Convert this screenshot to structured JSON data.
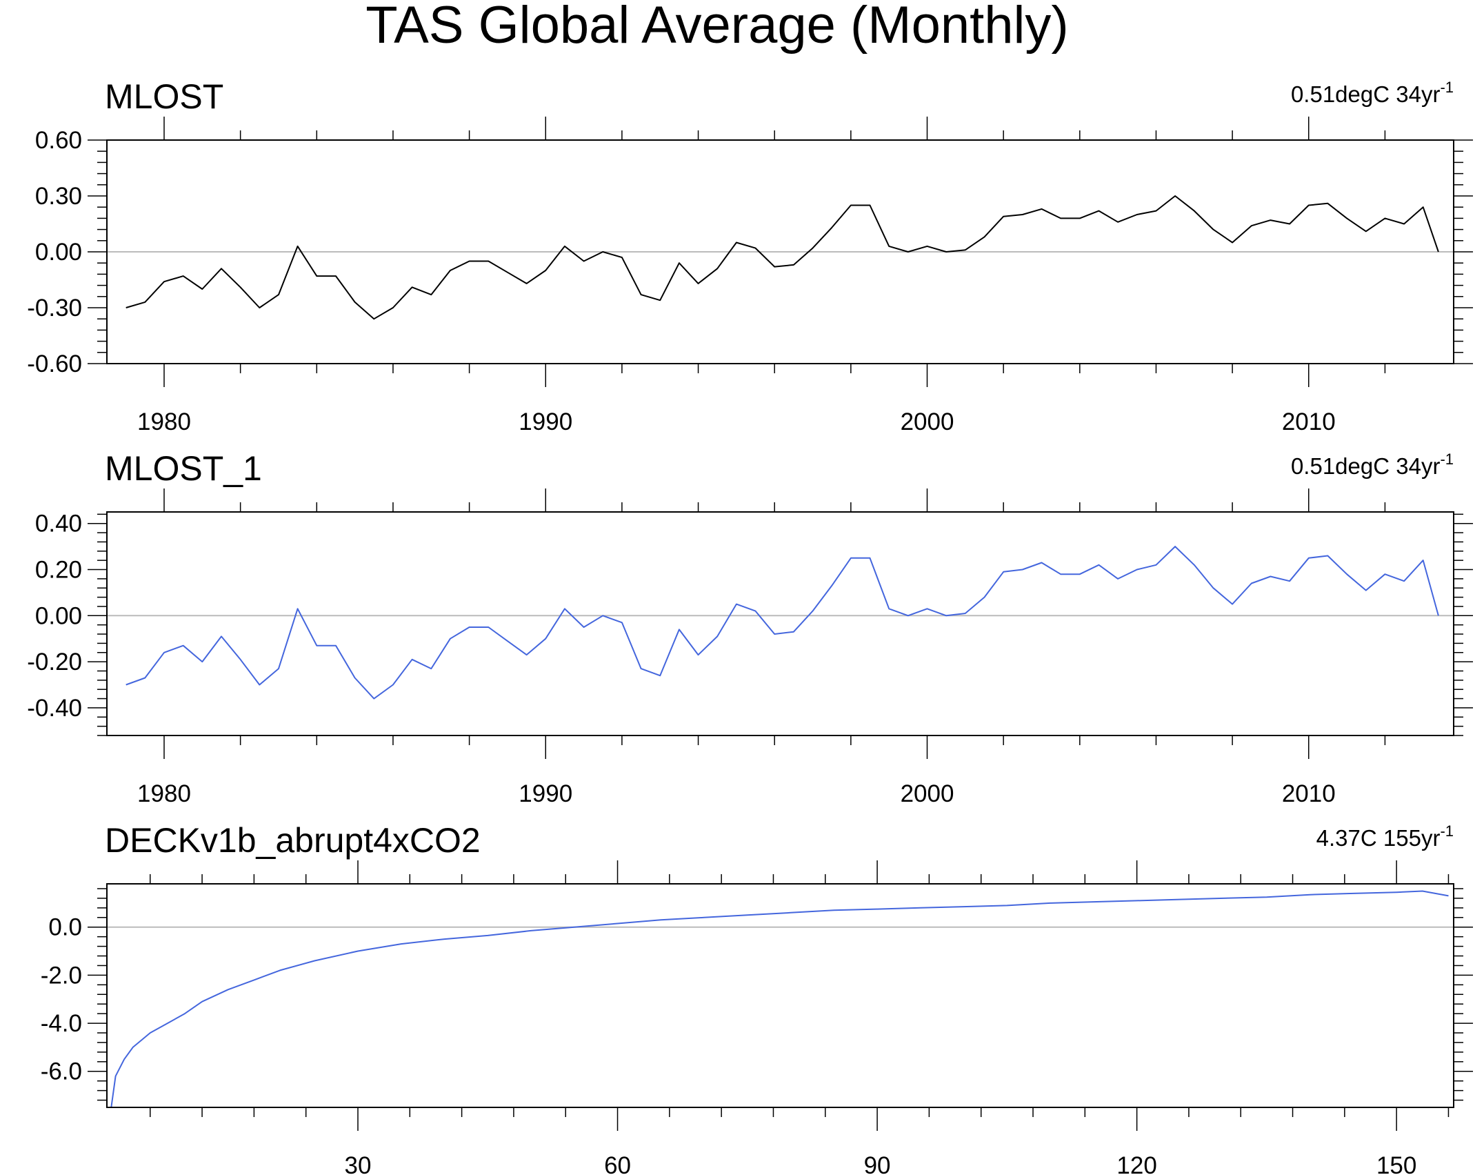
{
  "title": "TAS Global Average (Monthly)",
  "chart_data": [
    {
      "type": "line",
      "name": "MLOST",
      "title": "MLOST",
      "annotation": {
        "value": "0.51degC 34yr",
        "superscript": "-1"
      },
      "color": "#000000",
      "xlim": [
        1978.5,
        2013.8
      ],
      "ylim": [
        -0.6,
        0.6
      ],
      "xticks": [
        1980,
        1990,
        2000,
        2010
      ],
      "xtick_labels": [
        "1980",
        "1990",
        "2000",
        "2010"
      ],
      "yticks": [
        0.6,
        0.3,
        0.0,
        -0.3,
        -0.6
      ],
      "ytick_labels": [
        "0.60",
        "0.30",
        "0.00",
        "-0.30",
        "-0.60"
      ],
      "zero_line": true,
      "series": [
        {
          "name": "MLOST",
          "x": [
            1979.0,
            1979.5,
            1980.0,
            1980.5,
            1981.0,
            1981.5,
            1982.0,
            1982.5,
            1983.0,
            1983.5,
            1984.0,
            1984.5,
            1985.0,
            1985.5,
            1986.0,
            1986.5,
            1987.0,
            1987.5,
            1988.0,
            1988.5,
            1989.0,
            1989.5,
            1990.0,
            1990.5,
            1991.0,
            1991.5,
            1992.0,
            1992.5,
            1993.0,
            1993.5,
            1994.0,
            1994.5,
            1995.0,
            1995.5,
            1996.0,
            1996.5,
            1997.0,
            1997.5,
            1998.0,
            1998.5,
            1999.0,
            1999.5,
            2000.0,
            2000.5,
            2001.0,
            2001.5,
            2002.0,
            2002.5,
            2003.0,
            2003.5,
            2004.0,
            2004.5,
            2005.0,
            2005.5,
            2006.0,
            2006.5,
            2007.0,
            2007.5,
            2008.0,
            2008.5,
            2009.0,
            2009.5,
            2010.0,
            2010.5,
            2011.0,
            2011.5,
            2012.0,
            2012.5,
            2013.0,
            2013.4
          ],
          "y": [
            -0.3,
            -0.27,
            -0.16,
            -0.13,
            -0.2,
            -0.09,
            -0.19,
            -0.3,
            -0.23,
            0.03,
            -0.13,
            -0.13,
            -0.27,
            -0.36,
            -0.3,
            -0.19,
            -0.23,
            -0.1,
            -0.05,
            -0.05,
            -0.11,
            -0.17,
            -0.1,
            0.03,
            -0.05,
            0.0,
            -0.03,
            -0.23,
            -0.26,
            -0.06,
            -0.17,
            -0.09,
            0.05,
            0.02,
            -0.08,
            -0.07,
            0.02,
            0.13,
            0.25,
            0.25,
            0.03,
            0.0,
            0.03,
            0.0,
            0.01,
            0.08,
            0.19,
            0.2,
            0.23,
            0.18,
            0.18,
            0.22,
            0.16,
            0.2,
            0.22,
            0.3,
            0.22,
            0.12,
            0.05,
            0.14,
            0.17,
            0.15,
            0.25,
            0.26,
            0.18,
            0.11,
            0.18,
            0.15,
            0.24,
            0.0
          ]
        }
      ]
    },
    {
      "type": "line",
      "name": "MLOST_1",
      "title": "MLOST_1",
      "annotation": {
        "value": "0.51degC 34yr",
        "superscript": "-1"
      },
      "color": "#4466dd",
      "xlim": [
        1978.5,
        2013.8
      ],
      "ylim": [
        -0.52,
        0.45
      ],
      "xticks": [
        1980,
        1990,
        2000,
        2010
      ],
      "xtick_labels": [
        "1980",
        "1990",
        "2000",
        "2010"
      ],
      "yticks": [
        0.4,
        0.2,
        0.0,
        -0.2,
        -0.4
      ],
      "ytick_labels": [
        "0.40",
        "0.20",
        "0.00",
        "-0.20",
        "-0.40"
      ],
      "zero_line": true,
      "series": [
        {
          "name": "MLOST_1",
          "x": [
            1979.0,
            1979.5,
            1980.0,
            1980.5,
            1981.0,
            1981.5,
            1982.0,
            1982.5,
            1983.0,
            1983.5,
            1984.0,
            1984.5,
            1985.0,
            1985.5,
            1986.0,
            1986.5,
            1987.0,
            1987.5,
            1988.0,
            1988.5,
            1989.0,
            1989.5,
            1990.0,
            1990.5,
            1991.0,
            1991.5,
            1992.0,
            1992.5,
            1993.0,
            1993.5,
            1994.0,
            1994.5,
            1995.0,
            1995.5,
            1996.0,
            1996.5,
            1997.0,
            1997.5,
            1998.0,
            1998.5,
            1999.0,
            1999.5,
            2000.0,
            2000.5,
            2001.0,
            2001.5,
            2002.0,
            2002.5,
            2003.0,
            2003.5,
            2004.0,
            2004.5,
            2005.0,
            2005.5,
            2006.0,
            2006.5,
            2007.0,
            2007.5,
            2008.0,
            2008.5,
            2009.0,
            2009.5,
            2010.0,
            2010.5,
            2011.0,
            2011.5,
            2012.0,
            2012.5,
            2013.0,
            2013.4
          ],
          "y": [
            -0.3,
            -0.27,
            -0.16,
            -0.13,
            -0.2,
            -0.09,
            -0.19,
            -0.3,
            -0.23,
            0.03,
            -0.13,
            -0.13,
            -0.27,
            -0.36,
            -0.3,
            -0.19,
            -0.23,
            -0.1,
            -0.05,
            -0.05,
            -0.11,
            -0.17,
            -0.1,
            0.03,
            -0.05,
            0.0,
            -0.03,
            -0.23,
            -0.26,
            -0.06,
            -0.17,
            -0.09,
            0.05,
            0.02,
            -0.08,
            -0.07,
            0.02,
            0.13,
            0.25,
            0.25,
            0.03,
            0.0,
            0.03,
            0.0,
            0.01,
            0.08,
            0.19,
            0.2,
            0.23,
            0.18,
            0.18,
            0.22,
            0.16,
            0.2,
            0.22,
            0.3,
            0.22,
            0.12,
            0.05,
            0.14,
            0.17,
            0.15,
            0.25,
            0.26,
            0.18,
            0.11,
            0.18,
            0.15,
            0.24,
            0.0
          ]
        }
      ]
    },
    {
      "type": "line",
      "name": "DECKv1b_abrupt4xCO2",
      "title": "DECKv1b_abrupt4xCO2",
      "annotation": {
        "value": "4.37C 155yr",
        "superscript": "-1"
      },
      "color": "#4466dd",
      "xlim": [
        1,
        156.6
      ],
      "ylim": [
        -7.5,
        1.8
      ],
      "xticks": [
        30,
        60,
        90,
        120,
        150
      ],
      "xtick_labels": [
        "30",
        "60",
        "90",
        "120",
        "150"
      ],
      "yticks": [
        0.0,
        -2.0,
        -4.0,
        -6.0
      ],
      "ytick_labels": [
        "0.0",
        "-2.0",
        "-4.0",
        "-6.0"
      ],
      "zero_line": true,
      "series": [
        {
          "name": "DECKv1b_abrupt4xCO2",
          "x": [
            1.5,
            2,
            3,
            4,
            5,
            6,
            8,
            10,
            12,
            15,
            18,
            21,
            25,
            30,
            35,
            40,
            45,
            50,
            55,
            60,
            65,
            70,
            75,
            80,
            85,
            90,
            95,
            100,
            105,
            110,
            115,
            120,
            125,
            130,
            135,
            140,
            145,
            150,
            153,
            156
          ],
          "y": [
            -7.5,
            -6.2,
            -5.5,
            -5.0,
            -4.7,
            -4.4,
            -4.0,
            -3.6,
            -3.1,
            -2.6,
            -2.2,
            -1.8,
            -1.4,
            -1.0,
            -0.7,
            -0.5,
            -0.35,
            -0.15,
            0.0,
            0.15,
            0.3,
            0.4,
            0.5,
            0.6,
            0.7,
            0.75,
            0.8,
            0.85,
            0.9,
            1.0,
            1.05,
            1.1,
            1.15,
            1.2,
            1.25,
            1.35,
            1.4,
            1.45,
            1.5,
            1.3
          ]
        }
      ]
    }
  ]
}
